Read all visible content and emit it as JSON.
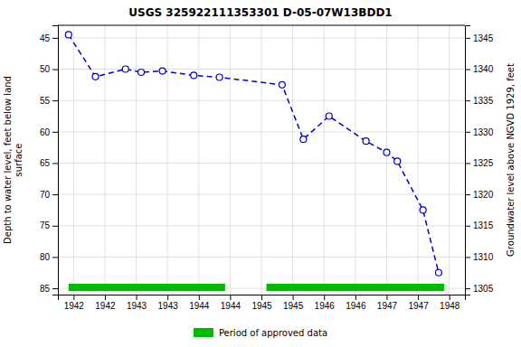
{
  "chart_data": {
    "type": "line",
    "title": "USGS 325922111353301 D-05-07W13BDD1",
    "x": [
      1941.92,
      1942.35,
      1942.83,
      1943.08,
      1943.42,
      1943.92,
      1944.33,
      1945.33,
      1945.67,
      1946.08,
      1946.67,
      1947.0,
      1947.17,
      1947.58,
      1947.83
    ],
    "series": [
      {
        "type": "line",
        "color": "#0000cc",
        "line_style": "dashed",
        "marker": "circle",
        "values": [
          44.5,
          51.2,
          50.0,
          50.5,
          50.3,
          51.0,
          51.3,
          52.5,
          61.2,
          57.5,
          61.5,
          63.3,
          64.7,
          72.5,
          82.5
        ]
      },
      {
        "type": "span",
        "name": "Period of approved data",
        "color": "#00bb00",
        "spans": [
          [
            1941.92,
            1944.42
          ],
          [
            1945.08,
            1947.92
          ]
        ]
      }
    ],
    "xlim": [
      1941.75,
      1948.25
    ],
    "xticks": [
      1942,
      {
        "value": 1942.5,
        "label": "1942"
      },
      1943,
      {
        "value": 1943.5,
        "label": "1943"
      },
      1944,
      {
        "value": 1944.5,
        "label": "1944"
      },
      1945,
      {
        "value": 1945.5,
        "label": "1945"
      },
      1946,
      {
        "value": 1946.5,
        "label": "1946"
      },
      1947,
      {
        "value": 1947.5,
        "label": "1947"
      },
      1948
    ],
    "ylim": [
      86,
      43
    ],
    "yticks": [
      45,
      50,
      55,
      60,
      65,
      70,
      75,
      80,
      85
    ],
    "y2lim": [
      1304,
      1347
    ],
    "y2ticks": [
      1345,
      1340,
      1335,
      1330,
      1325,
      1320,
      1315,
      1310,
      1305
    ],
    "ylabel": "Depth to water level, feet below land\nsurface",
    "y2label": "Groundwater level above NGVD 1929, feet",
    "grid": true,
    "legend": "bottom"
  }
}
